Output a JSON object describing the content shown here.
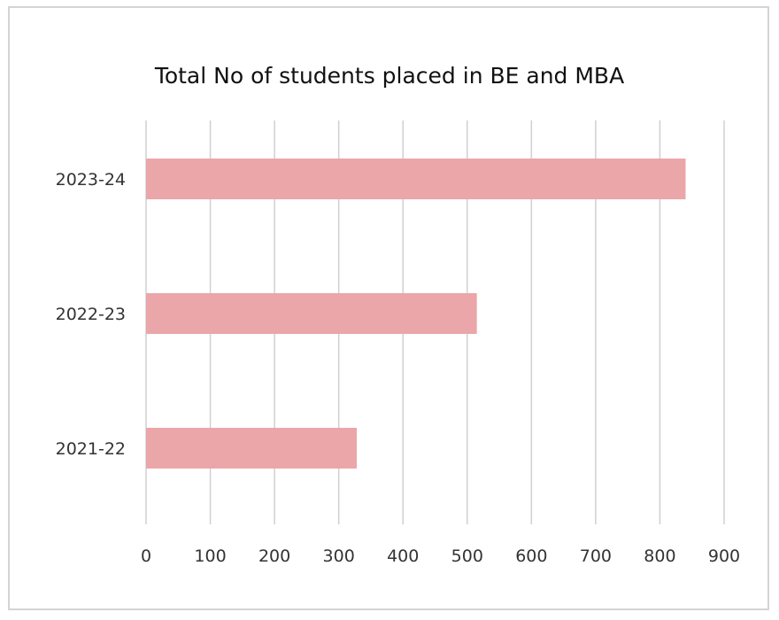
{
  "chart_data": {
    "type": "bar",
    "orientation": "horizontal",
    "title": "Total No of students placed in BE and MBA",
    "xlabel": "",
    "ylabel": "",
    "categories": [
      "2023-24",
      "2022-23",
      "2021-22"
    ],
    "values": [
      840,
      515,
      328
    ],
    "xlim": [
      0,
      900
    ],
    "xticks": [
      0,
      100,
      200,
      300,
      400,
      500,
      600,
      700,
      800,
      900
    ],
    "grid": true,
    "legend": "none",
    "bar_color": "#eba6aa"
  }
}
